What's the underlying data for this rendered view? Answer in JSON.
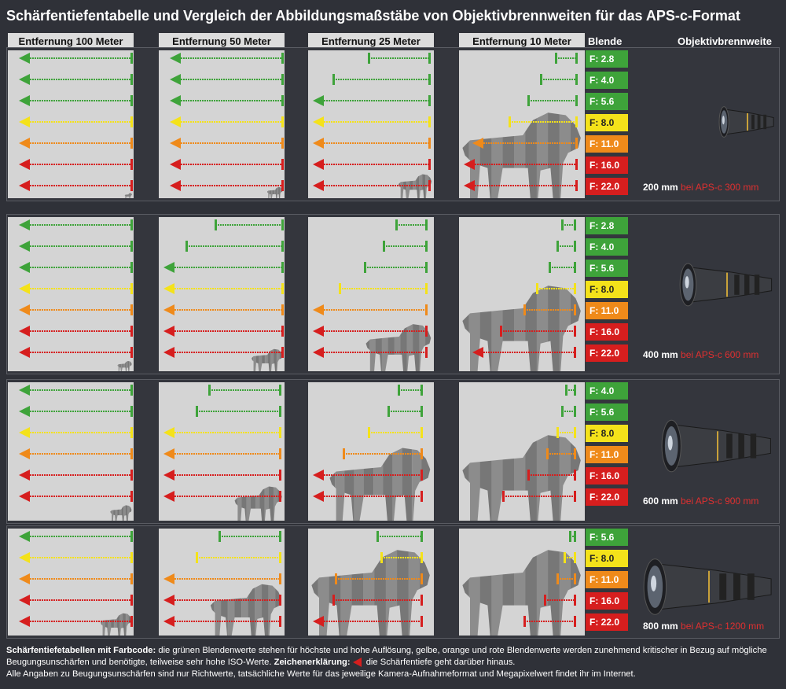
{
  "title": "Schärfentiefentabelle und Vergleich der Abbildungsmaßstäbe von Objektivbrennweiten für das APS-c-Format",
  "headers": {
    "columns": [
      "Entfernung 100 Meter",
      "Entfernung 50 Meter",
      "Entfernung 25 Meter",
      "Entfernung 10 Meter"
    ],
    "blende": "Blende",
    "lens": "Objektivbrennweite"
  },
  "colors": {
    "green": "#3ea33a",
    "yellow": "#f4e21a",
    "orange": "#ef8a1a",
    "red": "#d61e1e",
    "cell": "#d4d4d4",
    "background": "#2f3138"
  },
  "bands": [
    {
      "focal": "200 mm",
      "aps": "bei APS-c 300 mm",
      "apertures": [
        {
          "f": "F: 2.8",
          "c": "green"
        },
        {
          "f": "F: 4.0",
          "c": "green"
        },
        {
          "f": "F: 5.6",
          "c": "green"
        },
        {
          "f": "F: 8.0",
          "c": "yellow"
        },
        {
          "f": "F: 11.0",
          "c": "orange"
        },
        {
          "f": "F: 16.0",
          "c": "red"
        },
        {
          "f": "F: 22.0",
          "c": "red"
        }
      ],
      "lions": [
        0.06,
        0.13,
        0.28,
        1.0
      ]
    },
    {
      "focal": "400 mm",
      "aps": "bei APS-c 600 mm",
      "apertures": [
        {
          "f": "F: 2.8",
          "c": "green"
        },
        {
          "f": "F: 4.0",
          "c": "green"
        },
        {
          "f": "F: 5.6",
          "c": "green"
        },
        {
          "f": "F: 8.0",
          "c": "yellow"
        },
        {
          "f": "F: 11.0",
          "c": "orange"
        },
        {
          "f": "F: 16.0",
          "c": "red"
        },
        {
          "f": "F: 22.0",
          "c": "red"
        }
      ],
      "lions": [
        0.12,
        0.26,
        0.55,
        1.0
      ]
    },
    {
      "focal": "600 mm",
      "aps": "bei APS-c 900 mm",
      "apertures": [
        {
          "f": "F: 4.0",
          "c": "green"
        },
        {
          "f": "F: 5.6",
          "c": "green"
        },
        {
          "f": "F: 8.0",
          "c": "yellow"
        },
        {
          "f": "F: 11.0",
          "c": "orange"
        },
        {
          "f": "F: 16.0",
          "c": "red"
        },
        {
          "f": "F: 22.0",
          "c": "red"
        }
      ],
      "lions": [
        0.18,
        0.4,
        0.85,
        1.0
      ]
    },
    {
      "focal": "800 mm",
      "aps": "bei APS-c 1200 mm",
      "apertures": [
        {
          "f": "F: 5.6",
          "c": "green"
        },
        {
          "f": "F: 8.0",
          "c": "yellow"
        },
        {
          "f": "F: 11.0",
          "c": "orange"
        },
        {
          "f": "F: 16.0",
          "c": "red"
        },
        {
          "f": "F: 22.0",
          "c": "red"
        }
      ],
      "lions": [
        0.26,
        0.6,
        1.0,
        1.0
      ]
    }
  ],
  "footer": {
    "bold1": "Schärfentiefetabellen mit Farbcode:",
    "text1": " die grünen Blendenwerte stehen für höchste und hohe Auflösung, gelbe, orange und rote Blendenwerte werden zunehmend kritischer in Bezug auf mögliche Beugungsunschärfen und benötigte, teilweise sehr hohe ISO-Werte. ",
    "bold2": "Zeichenerklärung:",
    "text2": " die Schärfentiefe geht darüber hinaus.",
    "line2": "Alle Angaben zu Beugungsunschärfen sind nur Richtwerte, tatsächliche Werte für das jeweilige Kamera-Aufnahmeformat und Megapixelwert findet ihr im Internet."
  }
}
